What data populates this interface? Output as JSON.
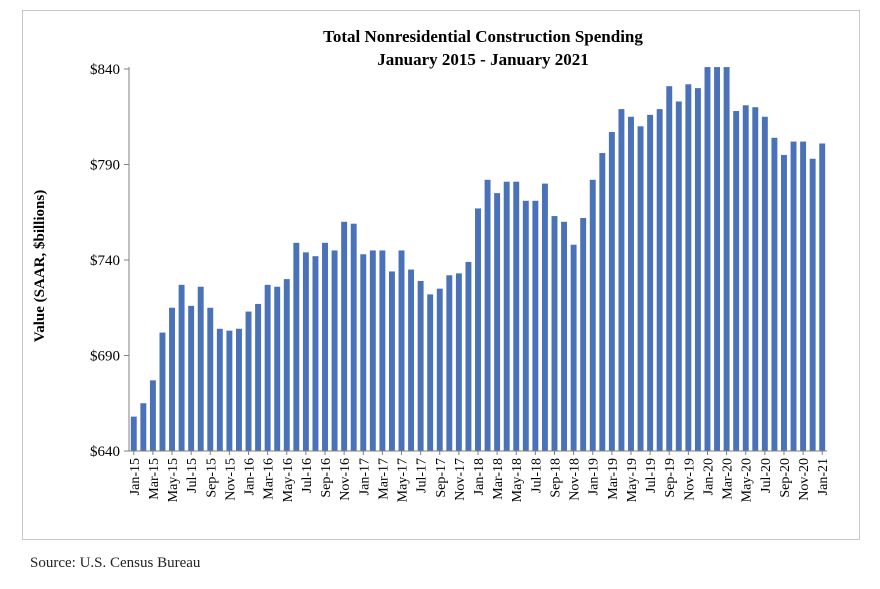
{
  "source_note": "Source:  U.S. Census Bureau",
  "chart_data": {
    "type": "bar",
    "title": "Total Nonresidential Construction Spending",
    "subtitle": "January 2015 - January 2021",
    "xlabel": "",
    "ylabel": "Value (SAAR, $billions)",
    "ylim": [
      640,
      840
    ],
    "yticks": [
      "$640",
      "$690",
      "$740",
      "$790",
      "$840"
    ],
    "ytick_values": [
      640,
      690,
      740,
      790,
      840
    ],
    "grid": false,
    "bar_color": "#4a72b8",
    "categories": [
      "Jan-15",
      "Feb-15",
      "Mar-15",
      "Apr-15",
      "May-15",
      "Jun-15",
      "Jul-15",
      "Aug-15",
      "Sep-15",
      "Oct-15",
      "Nov-15",
      "Dec-15",
      "Jan-16",
      "Feb-16",
      "Mar-16",
      "Apr-16",
      "May-16",
      "Jun-16",
      "Jul-16",
      "Aug-16",
      "Sep-16",
      "Oct-16",
      "Nov-16",
      "Dec-16",
      "Jan-17",
      "Feb-17",
      "Mar-17",
      "Apr-17",
      "May-17",
      "Jun-17",
      "Jul-17",
      "Aug-17",
      "Sep-17",
      "Oct-17",
      "Nov-17",
      "Dec-17",
      "Jan-18",
      "Feb-18",
      "Mar-18",
      "Apr-18",
      "May-18",
      "Jun-18",
      "Jul-18",
      "Aug-18",
      "Sep-18",
      "Oct-18",
      "Nov-18",
      "Dec-18",
      "Jan-19",
      "Feb-19",
      "Mar-19",
      "Apr-19",
      "May-19",
      "Jun-19",
      "Jul-19",
      "Aug-19",
      "Sep-19",
      "Oct-19",
      "Nov-19",
      "Dec-19",
      "Jan-20",
      "Feb-20",
      "Mar-20",
      "Apr-20",
      "May-20",
      "Jun-20",
      "Jul-20",
      "Aug-20",
      "Sep-20",
      "Oct-20",
      "Nov-20",
      "Dec-20",
      "Jan-21"
    ],
    "tick_labels": [
      "Jan-15",
      "Mar-15",
      "May-15",
      "Jul-15",
      "Sep-15",
      "Nov-15",
      "Jan-16",
      "Mar-16",
      "May-16",
      "Jul-16",
      "Sep-16",
      "Nov-16",
      "Jan-17",
      "Mar-17",
      "May-17",
      "Jul-17",
      "Sep-17",
      "Nov-17",
      "Jan-18",
      "Mar-18",
      "May-18",
      "Jul-18",
      "Sep-18",
      "Nov-18",
      "Jan-19",
      "Mar-19",
      "May-19",
      "Jul-19",
      "Sep-19",
      "Nov-19",
      "Jan-20",
      "Mar-20",
      "May-20",
      "Jul-20",
      "Sep-20",
      "Nov-20",
      "Jan-21"
    ],
    "values": [
      658,
      665,
      677,
      702,
      715,
      727,
      716,
      726,
      715,
      704,
      703,
      704,
      713,
      717,
      727,
      726,
      730,
      749,
      744,
      742,
      749,
      745,
      760,
      759,
      743,
      745,
      745,
      734,
      745,
      735,
      729,
      722,
      725,
      732,
      733,
      739,
      767,
      782,
      775,
      781,
      781,
      771,
      771,
      780,
      763,
      760,
      748,
      762,
      782,
      796,
      807,
      819,
      815,
      810,
      816,
      819,
      831,
      823,
      832,
      830,
      841,
      841,
      841,
      818,
      821,
      820,
      815,
      804,
      795,
      802,
      802,
      793,
      801
    ]
  }
}
